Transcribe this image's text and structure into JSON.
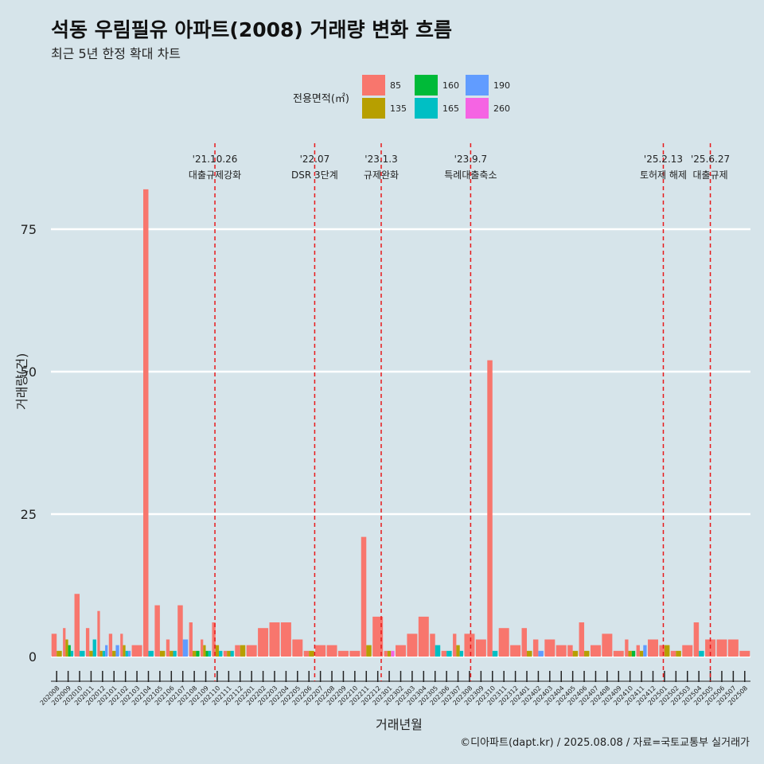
{
  "title": "석동 우림필유 아파트(2008) 거래량 변화 흐름",
  "subtitle": "최근 5년 한정 확대 차트",
  "caption": "©디아파트(dapt.kr) / 2025.08.08 / 자료=국토교통부 실거래가",
  "legend_title": "전용면적(㎡)",
  "colors": {
    "background": "#d6e4ea",
    "gridline": "#ffffff",
    "vline": "#e8191b"
  },
  "chart_data": {
    "type": "bar",
    "xlabel": "거래년월",
    "ylabel": "거래량(건)",
    "ylim": [
      -2,
      83
    ],
    "yticks": [
      0,
      25,
      50,
      75
    ],
    "grid": true,
    "legend_position": "top",
    "categories": [
      "202008",
      "202009",
      "202010",
      "202011",
      "202012",
      "202101",
      "202102",
      "202103",
      "202104",
      "202105",
      "202106",
      "202107",
      "202108",
      "202109",
      "202110",
      "202111",
      "202112",
      "202201",
      "202202",
      "202203",
      "202204",
      "202205",
      "202206",
      "202207",
      "202208",
      "202209",
      "202210",
      "202211",
      "202212",
      "202301",
      "202302",
      "202303",
      "202304",
      "202305",
      "202306",
      "202307",
      "202308",
      "202309",
      "202310",
      "202311",
      "202312",
      "202401",
      "202402",
      "202403",
      "202404",
      "202405",
      "202406",
      "202407",
      "202408",
      "202409",
      "202410",
      "202411",
      "202412",
      "202501",
      "202502",
      "202503",
      "202504",
      "202505",
      "202506",
      "202507",
      "202508"
    ],
    "series": [
      {
        "name": "85",
        "color": "#f8766d",
        "values": [
          4,
          5,
          11,
          5,
          8,
          4,
          4,
          2,
          82,
          9,
          3,
          9,
          6,
          3,
          6,
          1,
          2,
          2,
          5,
          6,
          6,
          3,
          1,
          2,
          2,
          1,
          1,
          21,
          7,
          1,
          2,
          4,
          7,
          4,
          1,
          4,
          4,
          3,
          52,
          5,
          2,
          5,
          3,
          3,
          2,
          2,
          6,
          2,
          4,
          1,
          3,
          2,
          3,
          2,
          1,
          2,
          6,
          3,
          3,
          3,
          1
        ]
      },
      {
        "name": "135",
        "color": "#b79f00",
        "values": [
          1,
          3,
          0,
          1,
          1,
          1,
          2,
          0,
          0,
          1,
          1,
          0,
          1,
          2,
          2,
          1,
          2,
          0,
          0,
          0,
          0,
          0,
          1,
          0,
          0,
          0,
          0,
          2,
          0,
          1,
          0,
          0,
          0,
          0,
          0,
          2,
          0,
          0,
          0,
          0,
          0,
          1,
          0,
          0,
          0,
          1,
          1,
          0,
          0,
          0,
          1,
          1,
          0,
          2,
          1,
          0,
          0,
          0,
          0,
          0,
          0
        ]
      },
      {
        "name": "160",
        "color": "#00ba38",
        "values": [
          0,
          2,
          0,
          0,
          0,
          0,
          0,
          0,
          0,
          0,
          0,
          0,
          1,
          1,
          0,
          0,
          0,
          0,
          0,
          0,
          0,
          0,
          0,
          0,
          0,
          0,
          0,
          0,
          0,
          0,
          0,
          0,
          0,
          0,
          0,
          0,
          0,
          0,
          0,
          0,
          0,
          0,
          0,
          0,
          0,
          0,
          0,
          0,
          0,
          0,
          1,
          0,
          0,
          0,
          0,
          0,
          0,
          0,
          0,
          0,
          0
        ]
      },
      {
        "name": "165",
        "color": "#00bfc4",
        "values": [
          0,
          1,
          1,
          3,
          1,
          0,
          1,
          0,
          1,
          0,
          1,
          0,
          0,
          1,
          1,
          1,
          0,
          0,
          0,
          0,
          0,
          0,
          0,
          0,
          0,
          0,
          0,
          0,
          0,
          0,
          0,
          0,
          0,
          2,
          1,
          1,
          0,
          0,
          1,
          0,
          0,
          0,
          0,
          0,
          0,
          0,
          0,
          0,
          0,
          0,
          0,
          0,
          0,
          0,
          0,
          0,
          1,
          0,
          0,
          0,
          0
        ]
      },
      {
        "name": "190",
        "color": "#619cff",
        "values": [
          0,
          0,
          0,
          0,
          2,
          2,
          1,
          0,
          0,
          0,
          0,
          3,
          0,
          0,
          0,
          0,
          0,
          0,
          0,
          0,
          0,
          0,
          0,
          0,
          0,
          0,
          0,
          0,
          0,
          0,
          0,
          0,
          0,
          0,
          0,
          0,
          0,
          0,
          0,
          0,
          0,
          0,
          1,
          0,
          0,
          0,
          0,
          0,
          0,
          0,
          0,
          2,
          0,
          0,
          0,
          0,
          0,
          0,
          0,
          0,
          0
        ]
      },
      {
        "name": "260",
        "color": "#f564e3",
        "values": [
          0,
          0,
          0,
          0,
          0,
          0,
          0,
          0,
          0,
          0,
          0,
          0,
          0,
          0,
          0,
          0,
          0,
          0,
          0,
          0,
          0,
          0,
          0,
          0,
          0,
          0,
          0,
          0,
          0,
          1,
          0,
          0,
          0,
          0,
          0,
          0,
          0,
          0,
          0,
          0,
          0,
          0,
          0,
          0,
          0,
          0,
          0,
          0,
          0,
          0,
          0,
          0,
          0,
          0,
          0,
          0,
          0,
          0,
          0,
          0,
          0
        ]
      }
    ],
    "annotations": [
      {
        "date": "'21.10.26",
        "label": "대출규제강화",
        "x": 14.3
      },
      {
        "date": "'22.07",
        "label": "DSR 3단계",
        "x": 23.0
      },
      {
        "date": "'23.1.3",
        "label": "규제완화",
        "x": 28.8
      },
      {
        "date": "'23.9.7",
        "label": "특례대출축소",
        "x": 36.6
      },
      {
        "date": "'25.2.13",
        "label": "토허제 해제",
        "x": 53.4
      },
      {
        "date": "'25.6.27",
        "label": "대출규제",
        "x": 57.5
      }
    ]
  }
}
